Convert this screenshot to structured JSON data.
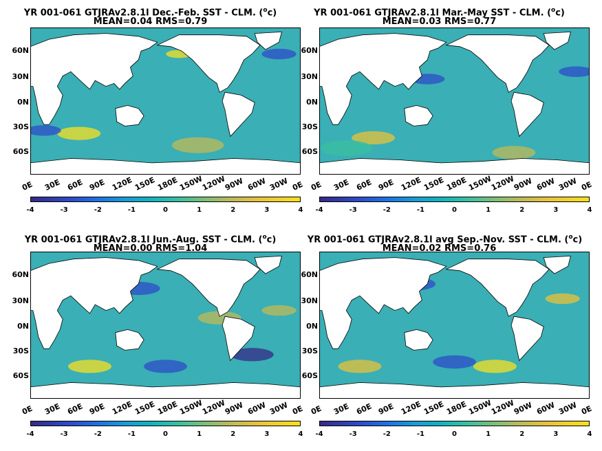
{
  "panels": [
    {
      "title": "YR 001-061 GTJRAv2.8.1l  Dec.-Feb. SST - CLM. (",
      "unit_sup": "o",
      "unit_end": "c)",
      "subtitle": "MEAN=0.04   RMS=0.79"
    },
    {
      "title": "YR 001-061 GTJRAv2.8.1l  Mar.-May SST - CLM. (",
      "unit_sup": "o",
      "unit_end": "c)",
      "subtitle": "MEAN=0.03   RMS=0.77"
    },
    {
      "title": "YR 001-061 GTJRAv2.8.1l  Jun.-Aug. SST - CLM. (",
      "unit_sup": "o",
      "unit_end": "c)",
      "subtitle": "MEAN=0.00   RMS=1.04"
    },
    {
      "title": "YR 001-061 GTJRAv2.8.1l avg Sep.-Nov. SST - CLM. (",
      "unit_sup": "o",
      "unit_end": "c)",
      "subtitle": "MEAN=0.02   RMS=0.76"
    }
  ],
  "lat_labels": [
    "60N",
    "30N",
    "0N",
    "30S",
    "60S"
  ],
  "lon_labels": [
    "0E",
    "30E",
    "60E",
    "90E",
    "120E",
    "150E",
    "180E",
    "150W",
    "120W",
    "90W",
    "60W",
    "30W",
    "0E"
  ],
  "colorbar": {
    "ticks": [
      "-4",
      "-3",
      "-2",
      "-1",
      "0",
      "1",
      "2",
      "3",
      "4"
    ],
    "range": [
      -4,
      4
    ],
    "colormap": "parula",
    "colors": [
      "#352a87",
      "#2e4cc9",
      "#1a9ad6",
      "#3bbfa0",
      "#c0b958",
      "#f8e020"
    ]
  },
  "ocean_color": "#3aafb5",
  "land_color": "#ffffff"
}
